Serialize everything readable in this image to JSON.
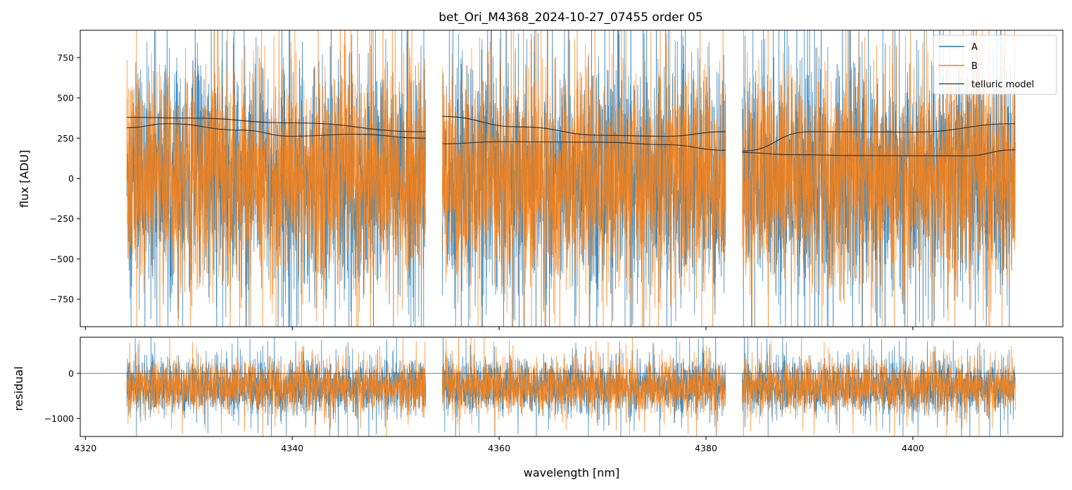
{
  "chart_data": {
    "type": "line",
    "title": "bet_Ori_M4368_2024-10-27_07455  order 05",
    "xlabel": "wavelength [nm]",
    "xlim": [
      4319.5,
      4414.5
    ],
    "xticks": [
      4320,
      4340,
      4360,
      4380,
      4400
    ],
    "segments": [
      [
        4324.0,
        4352.9
      ],
      [
        4354.5,
        4381.9
      ],
      [
        4383.5,
        4409.9
      ]
    ],
    "colors": {
      "A": "#1f77b4",
      "B": "#ff7f0e",
      "telluric": "#333333"
    },
    "legend": {
      "position": "top-right",
      "entries": [
        "A",
        "B",
        "telluric model"
      ]
    },
    "top_panel": {
      "ylabel": "flux [ADU]",
      "ylim": [
        -920,
        920
      ],
      "yticks": [
        -750,
        -500,
        -250,
        0,
        250,
        500,
        750
      ],
      "series": [
        {
          "name": "A",
          "mean": 0,
          "noise_sigma": 360
        },
        {
          "name": "B",
          "mean": 0,
          "noise_sigma": 330
        }
      ],
      "telluric_models": [
        {
          "name": "telluric model A",
          "points": [
            [
              4324,
              380
            ],
            [
              4330,
              375
            ],
            [
              4340,
              345
            ],
            [
              4352.9,
              290
            ],
            [
              4354.5,
              385
            ],
            [
              4362,
              320
            ],
            [
              4370,
              268
            ],
            [
              4376,
              262
            ],
            [
              4381.9,
              290
            ],
            [
              4383.5,
              170
            ],
            [
              4390,
              290
            ],
            [
              4400,
              288
            ],
            [
              4409.9,
              340
            ]
          ]
        },
        {
          "name": "telluric model B",
          "points": [
            [
              4324,
              315
            ],
            [
              4328,
              340
            ],
            [
              4335,
              300
            ],
            [
              4340,
              262
            ],
            [
              4346,
              275
            ],
            [
              4352.9,
              250
            ],
            [
              4354.5,
              215
            ],
            [
              4360,
              228
            ],
            [
              4370,
              225
            ],
            [
              4376,
              210
            ],
            [
              4381.9,
              175
            ],
            [
              4383.5,
              162
            ],
            [
              4388,
              148
            ],
            [
              4395,
              142
            ],
            [
              4405,
              140
            ],
            [
              4409.9,
              178
            ]
          ]
        }
      ]
    },
    "bottom_panel": {
      "ylabel": "residual",
      "ylim": [
        -1400,
        800
      ],
      "yticks": [
        -1000,
        0
      ],
      "zero_line": 0,
      "series": [
        {
          "name": "A",
          "mean": -300,
          "noise_sigma": 300
        },
        {
          "name": "B",
          "mean": -300,
          "noise_sigma": 280
        }
      ]
    }
  }
}
